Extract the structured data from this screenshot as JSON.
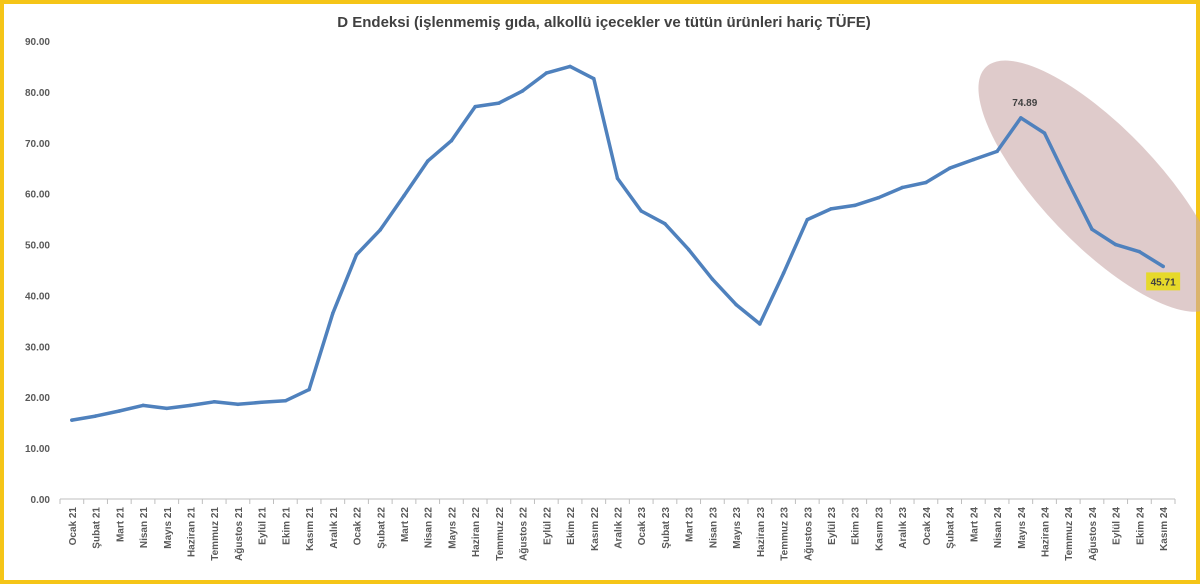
{
  "chart_data": {
    "type": "line",
    "title": "D Endeksi (işlenmemiş gıda, alkollü içecekler ve tütün ürünleri hariç TÜFE)",
    "xlabel": "",
    "ylabel": "",
    "ylim": [
      0,
      90
    ],
    "yticks": [
      "0.00",
      "10.00",
      "20.00",
      "30.00",
      "40.00",
      "50.00",
      "60.00",
      "70.00",
      "80.00",
      "90.00"
    ],
    "grid": false,
    "categories": [
      "Ocak 21",
      "Şubat 21",
      "Mart 21",
      "Nisan 21",
      "Mayıs 21",
      "Haziran 21",
      "Temmuz 21",
      "Ağustos 21",
      "Eylül 21",
      "Ekim 21",
      "Kasım 21",
      "Aralık 21",
      "Ocak 22",
      "Şubat 22",
      "Mart 22",
      "Nisan 22",
      "Mayıs 22",
      "Haziran 22",
      "Temmuz 22",
      "Ağustos 22",
      "Eylül 22",
      "Ekim 22",
      "Kasım 22",
      "Aralık 22",
      "Ocak 23",
      "Şubat 23",
      "Mart 23",
      "Nisan 23",
      "Mayıs 23",
      "Haziran 23",
      "Temmuz 23",
      "Ağustos 23",
      "Eylül 23",
      "Ekim 23",
      "Kasım 23",
      "Aralık 23",
      "Ocak 24",
      "Şubat 24",
      "Mart 24",
      "Nisan 24",
      "Mayıs 24",
      "Haziran 24",
      "Temmuz 24",
      "Ağustos 24",
      "Eylül 24",
      "Ekim 24",
      "Kasım 24"
    ],
    "series": [
      {
        "color": "#4f81bd",
        "values": [
          15.5,
          16.3,
          17.3,
          18.4,
          17.8,
          18.4,
          19.1,
          18.6,
          19.0,
          19.3,
          21.5,
          36.5,
          48.0,
          52.9,
          59.6,
          66.4,
          70.4,
          77.1,
          77.8,
          80.2,
          83.7,
          85.0,
          82.6,
          63.0,
          56.6,
          54.1,
          49.0,
          43.2,
          38.2,
          34.4,
          44.4,
          54.9,
          57.0,
          57.7,
          59.2,
          61.2,
          62.2,
          65.0,
          66.7,
          68.3,
          74.89,
          71.9,
          62.3,
          53.0,
          50.0,
          48.6,
          45.71
        ]
      }
    ],
    "data_labels": [
      {
        "index": 40,
        "text": "74.89"
      },
      {
        "index": 46,
        "text": "45.71",
        "highlight": "#e6d92a"
      }
    ],
    "annotation_color": "#c9a8a8"
  }
}
